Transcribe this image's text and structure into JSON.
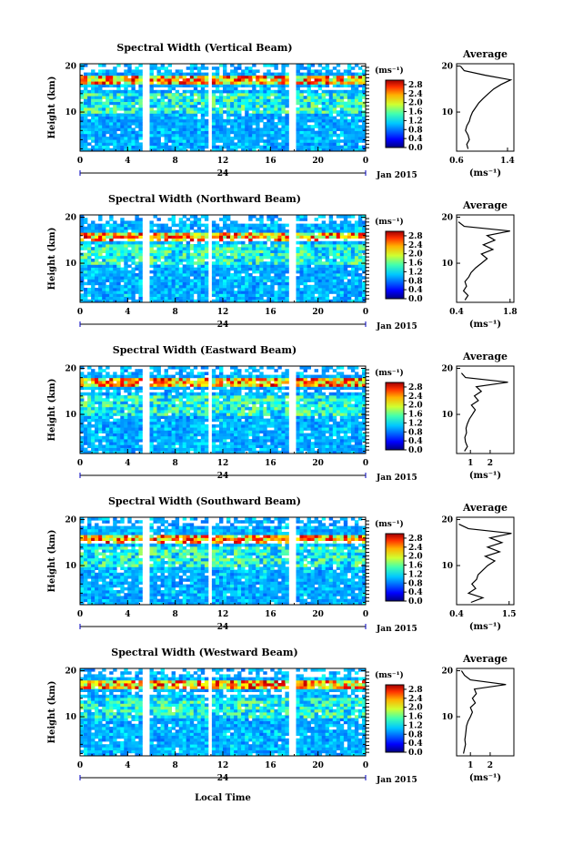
{
  "figure": {
    "xlabel": "Local Time",
    "colorbar_unit": "(ms⁻¹)",
    "colorbar_ticks": [
      "0.0",
      "0.4",
      "0.8",
      "1.2",
      "1.6",
      "2.0",
      "2.4",
      "2.8"
    ],
    "average_title": "Average",
    "average_unit": "(ms⁻¹)",
    "date_label": "Jan 2015",
    "day_label": "24",
    "x_ticks": [
      "0",
      "4",
      "8",
      "12",
      "16",
      "20",
      "0"
    ],
    "y_label": "Height (km)",
    "y_ticks": [
      "20",
      "10"
    ]
  },
  "chart_data": [
    {
      "type": "heatmap",
      "title": "Spectral Width (Vertical Beam)",
      "colormap": "jet",
      "xlabel": "",
      "ylabel": "Height (km)",
      "xlim": [
        0,
        24
      ],
      "ylim": [
        1.5,
        20.5
      ],
      "zlim": [
        0,
        3.0
      ],
      "gaps_hours": [
        [
          5.3,
          5.8
        ],
        [
          10.7,
          11.2
        ],
        [
          17.6,
          18.0
        ]
      ],
      "high_band_km": [
        16,
        18
      ],
      "average_profile": {
        "xlim": [
          0.6,
          1.5
        ],
        "x_ticks": [
          "0.6",
          "1.4"
        ],
        "height_km": [
          2,
          3,
          4,
          5,
          6,
          7,
          8,
          9,
          10,
          11,
          12,
          13,
          14,
          15,
          16,
          17,
          18,
          19,
          20
        ],
        "width_ms": [
          0.78,
          0.76,
          0.8,
          0.78,
          0.74,
          0.76,
          0.8,
          0.82,
          0.85,
          0.9,
          0.95,
          1.02,
          1.1,
          1.18,
          1.3,
          1.45,
          1.05,
          0.72,
          0.66
        ]
      }
    },
    {
      "type": "heatmap",
      "title": "Spectral Width (Northward Beam)",
      "colormap": "jet",
      "xlabel": "",
      "ylabel": "Height (km)",
      "xlim": [
        0,
        24
      ],
      "ylim": [
        1.5,
        20.5
      ],
      "zlim": [
        0,
        3.0
      ],
      "gaps_hours": [
        [
          5.3,
          5.8
        ],
        [
          10.7,
          11.2
        ],
        [
          17.6,
          18.0
        ]
      ],
      "high_band_km": [
        15,
        17
      ],
      "average_profile": {
        "xlim": [
          0.4,
          1.9
        ],
        "x_ticks": [
          "0.4",
          "1.8"
        ],
        "height_km": [
          2,
          3,
          4,
          5,
          6,
          7,
          8,
          9,
          10,
          11,
          12,
          13,
          14,
          15,
          16,
          17,
          18,
          19
        ],
        "width_ms": [
          0.62,
          0.7,
          0.58,
          0.66,
          0.62,
          0.72,
          0.78,
          0.9,
          1.05,
          1.2,
          1.05,
          1.35,
          1.1,
          1.4,
          1.2,
          1.8,
          0.6,
          0.45
        ]
      }
    },
    {
      "type": "heatmap",
      "title": "Spectral Width (Eastward Beam)",
      "colormap": "jet",
      "xlabel": "",
      "ylabel": "Height (km)",
      "xlim": [
        0,
        24
      ],
      "ylim": [
        1.5,
        20.5
      ],
      "zlim": [
        0,
        3.0
      ],
      "gaps_hours": [
        [
          5.3,
          5.8
        ],
        [
          10.7,
          11.2
        ],
        [
          17.6,
          18.0
        ]
      ],
      "high_band_km": [
        16,
        18
      ],
      "average_profile": {
        "xlim": [
          0.3,
          3.2
        ],
        "x_ticks": [
          "1",
          "2"
        ],
        "height_km": [
          2,
          3,
          4,
          5,
          6,
          7,
          8,
          9,
          10,
          11,
          12,
          13,
          14,
          15,
          16,
          17,
          18,
          19
        ],
        "width_ms": [
          0.7,
          0.85,
          0.75,
          0.72,
          0.8,
          0.78,
          0.85,
          0.95,
          1.1,
          1.25,
          1.05,
          1.4,
          1.2,
          1.55,
          1.3,
          2.9,
          0.75,
          0.55
        ]
      }
    },
    {
      "type": "heatmap",
      "title": "Spectral Width (Southward Beam)",
      "colormap": "jet",
      "xlabel": "",
      "ylabel": "Height (km)",
      "xlim": [
        0,
        24
      ],
      "ylim": [
        1.5,
        20.5
      ],
      "zlim": [
        0,
        3.0
      ],
      "gaps_hours": [
        [
          5.3,
          5.8
        ],
        [
          10.7,
          11.2
        ],
        [
          17.6,
          18.0
        ]
      ],
      "high_band_km": [
        15,
        17
      ],
      "average_profile": {
        "xlim": [
          0.4,
          1.6
        ],
        "x_ticks": [
          "0.4",
          "1.5"
        ],
        "height_km": [
          2,
          3,
          4,
          5,
          6,
          7,
          8,
          9,
          10,
          11,
          12,
          13,
          14,
          15,
          16,
          17,
          18,
          19
        ],
        "width_ms": [
          0.7,
          0.95,
          0.65,
          0.8,
          0.72,
          0.82,
          0.85,
          0.95,
          1.05,
          1.2,
          1.0,
          1.3,
          1.05,
          1.35,
          1.1,
          1.55,
          0.65,
          0.45
        ]
      }
    },
    {
      "type": "heatmap",
      "title": "Spectral Width (Westward Beam)",
      "colormap": "jet",
      "xlabel": "Local Time",
      "ylabel": "Height (km)",
      "xlim": [
        0,
        24
      ],
      "ylim": [
        1.5,
        20.5
      ],
      "zlim": [
        0,
        3.0
      ],
      "gaps_hours": [
        [
          5.3,
          5.8
        ],
        [
          10.7,
          11.2
        ],
        [
          17.6,
          18.0
        ]
      ],
      "high_band_km": [
        16,
        18
      ],
      "average_profile": {
        "xlim": [
          0.3,
          3.2
        ],
        "x_ticks": [
          "1",
          "2"
        ],
        "height_km": [
          2,
          3,
          4,
          5,
          6,
          7,
          8,
          9,
          10,
          11,
          12,
          13,
          14,
          15,
          16,
          17,
          18,
          19,
          20
        ],
        "width_ms": [
          0.65,
          0.7,
          0.75,
          0.72,
          0.75,
          0.78,
          0.8,
          0.88,
          1.0,
          1.1,
          1.0,
          1.25,
          1.1,
          1.3,
          1.2,
          2.8,
          1.0,
          0.7,
          0.55
        ]
      }
    }
  ]
}
